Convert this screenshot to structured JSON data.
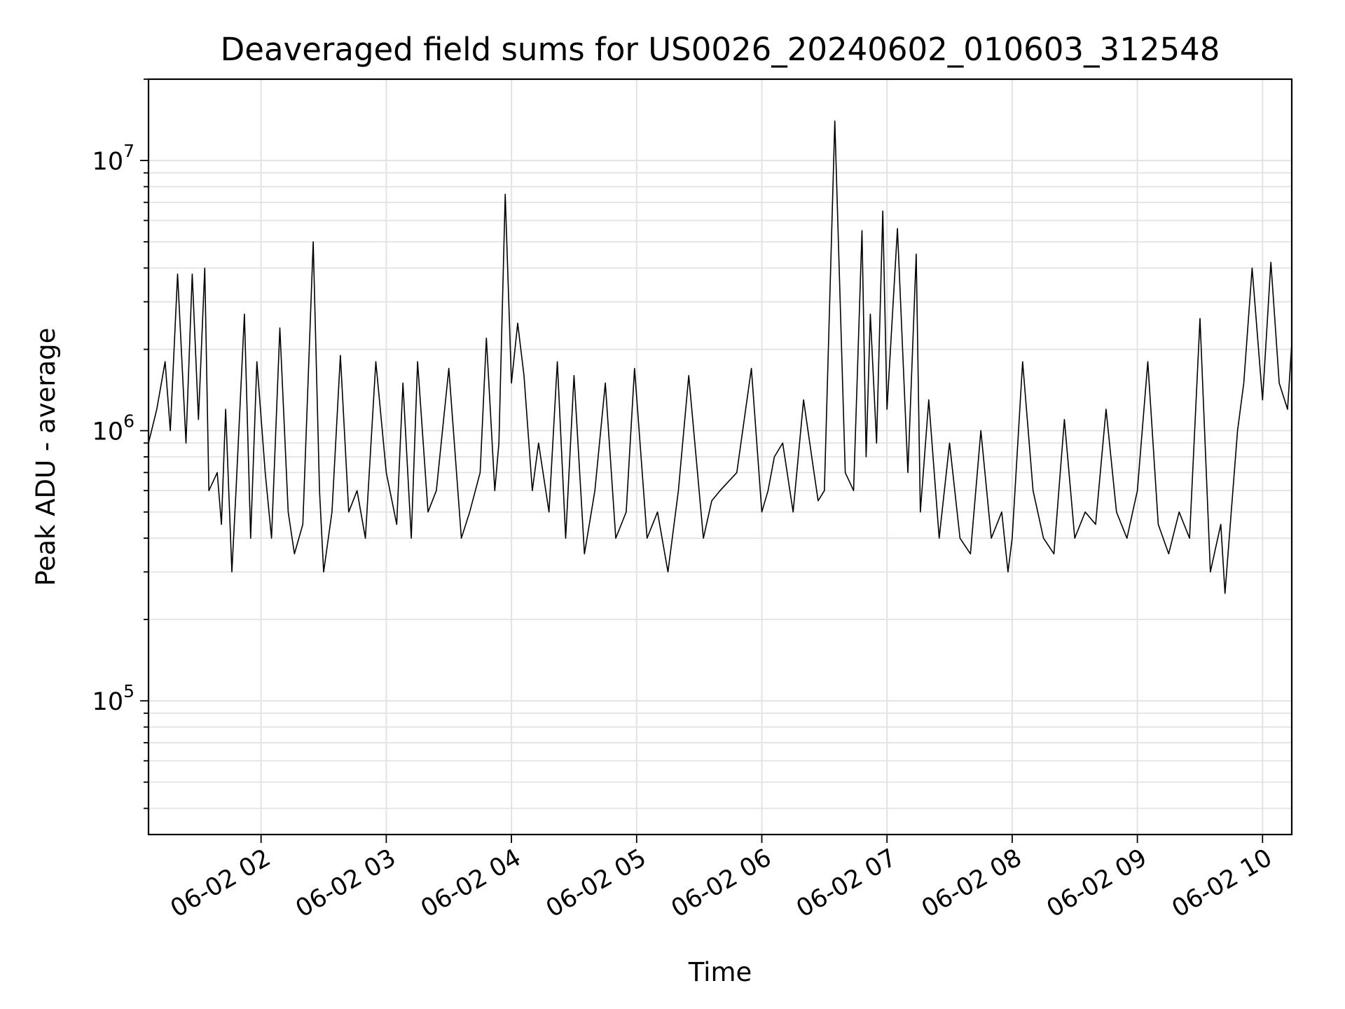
{
  "chart_data": {
    "type": "line",
    "title": "Deaveraged field sums for US0026_20240602_010603_312548",
    "xlabel": "Time",
    "ylabel": "Peak ADU - average",
    "yscale": "log",
    "ylim": [
      32000,
      20000000
    ],
    "xlim": [
      "2024-06-02T01:06:03",
      "2024-06-02T10:14:00"
    ],
    "grid": true,
    "line_color": "#000000",
    "x_ticks": [
      {
        "value": "2024-06-02T02:00:00",
        "label": "06-02 02"
      },
      {
        "value": "2024-06-02T03:00:00",
        "label": "06-02 03"
      },
      {
        "value": "2024-06-02T04:00:00",
        "label": "06-02 04"
      },
      {
        "value": "2024-06-02T05:00:00",
        "label": "06-02 05"
      },
      {
        "value": "2024-06-02T06:00:00",
        "label": "06-02 06"
      },
      {
        "value": "2024-06-02T07:00:00",
        "label": "06-02 07"
      },
      {
        "value": "2024-06-02T08:00:00",
        "label": "06-02 08"
      },
      {
        "value": "2024-06-02T09:00:00",
        "label": "06-02 09"
      },
      {
        "value": "2024-06-02T10:00:00",
        "label": "06-02 10"
      }
    ],
    "y_ticks": [
      {
        "value": 100000,
        "base": "10",
        "exp": "5"
      },
      {
        "value": 1000000,
        "base": "10",
        "exp": "6"
      },
      {
        "value": 10000000,
        "base": "10",
        "exp": "7"
      }
    ],
    "series": [
      {
        "x": [
          "2024-06-02T01:06:03",
          "2024-06-02T01:10:00",
          "2024-06-02T01:14:00",
          "2024-06-02T01:16:30",
          "2024-06-02T01:20:00",
          "2024-06-02T01:24:00",
          "2024-06-02T01:27:00",
          "2024-06-02T01:30:00",
          "2024-06-02T01:33:00",
          "2024-06-02T01:35:00",
          "2024-06-02T01:39:00",
          "2024-06-02T01:41:00",
          "2024-06-02T01:43:00",
          "2024-06-02T01:46:00",
          "2024-06-02T01:48:00",
          "2024-06-02T01:52:00",
          "2024-06-02T01:55:00",
          "2024-06-02T01:58:00",
          "2024-06-02T02:02:00",
          "2024-06-02T02:05:00",
          "2024-06-02T02:09:00",
          "2024-06-02T02:13:00",
          "2024-06-02T02:16:00",
          "2024-06-02T02:20:00",
          "2024-06-02T02:25:00",
          "2024-06-02T02:28:00",
          "2024-06-02T02:30:00",
          "2024-06-02T02:34:00",
          "2024-06-02T02:38:00",
          "2024-06-02T02:42:00",
          "2024-06-02T02:46:00",
          "2024-06-02T02:50:00",
          "2024-06-02T02:55:00",
          "2024-06-02T03:00:00",
          "2024-06-02T03:05:00",
          "2024-06-02T03:08:00",
          "2024-06-02T03:12:00",
          "2024-06-02T03:15:00",
          "2024-06-02T03:20:00",
          "2024-06-02T03:24:00",
          "2024-06-02T03:30:00",
          "2024-06-02T03:36:00",
          "2024-06-02T03:40:00",
          "2024-06-02T03:45:00",
          "2024-06-02T03:48:00",
          "2024-06-02T03:52:00",
          "2024-06-02T03:54:00",
          "2024-06-02T03:57:00",
          "2024-06-02T04:00:00",
          "2024-06-02T04:03:00",
          "2024-06-02T04:06:00",
          "2024-06-02T04:10:00",
          "2024-06-02T04:13:00",
          "2024-06-02T04:18:00",
          "2024-06-02T04:22:00",
          "2024-06-02T04:26:00",
          "2024-06-02T04:30:00",
          "2024-06-02T04:35:00",
          "2024-06-02T04:40:00",
          "2024-06-02T04:45:00",
          "2024-06-02T04:50:00",
          "2024-06-02T04:55:00",
          "2024-06-02T04:59:00",
          "2024-06-02T05:05:00",
          "2024-06-02T05:10:00",
          "2024-06-02T05:15:00",
          "2024-06-02T05:20:00",
          "2024-06-02T05:25:00",
          "2024-06-02T05:32:00",
          "2024-06-02T05:36:00",
          "2024-06-02T05:40:00",
          "2024-06-02T05:48:00",
          "2024-06-02T05:55:00",
          "2024-06-02T06:00:00",
          "2024-06-02T06:03:00",
          "2024-06-02T06:06:00",
          "2024-06-02T06:10:00",
          "2024-06-02T06:15:00",
          "2024-06-02T06:20:00",
          "2024-06-02T06:25:00",
          "2024-06-02T06:27:00",
          "2024-06-02T06:30:00",
          "2024-06-02T06:35:00",
          "2024-06-02T06:40:00",
          "2024-06-02T06:44:00",
          "2024-06-02T06:48:00",
          "2024-06-02T06:50:00",
          "2024-06-02T06:52:00",
          "2024-06-02T06:55:00",
          "2024-06-02T06:58:00",
          "2024-06-02T07:00:00",
          "2024-06-02T07:05:00",
          "2024-06-02T07:10:00",
          "2024-06-02T07:14:00",
          "2024-06-02T07:16:00",
          "2024-06-02T07:20:00",
          "2024-06-02T07:25:00",
          "2024-06-02T07:30:00",
          "2024-06-02T07:35:00",
          "2024-06-02T07:40:00",
          "2024-06-02T07:45:00",
          "2024-06-02T07:50:00",
          "2024-06-02T07:55:00",
          "2024-06-02T07:58:00",
          "2024-06-02T08:00:00",
          "2024-06-02T08:05:00",
          "2024-06-02T08:10:00",
          "2024-06-02T08:15:00",
          "2024-06-02T08:20:00",
          "2024-06-02T08:25:00",
          "2024-06-02T08:30:00",
          "2024-06-02T08:35:00",
          "2024-06-02T08:40:00",
          "2024-06-02T08:45:00",
          "2024-06-02T08:50:00",
          "2024-06-02T08:55:00",
          "2024-06-02T09:00:00",
          "2024-06-02T09:05:00",
          "2024-06-02T09:10:00",
          "2024-06-02T09:15:00",
          "2024-06-02T09:20:00",
          "2024-06-02T09:25:00",
          "2024-06-02T09:30:00",
          "2024-06-02T09:35:00",
          "2024-06-02T09:40:00",
          "2024-06-02T09:42:00",
          "2024-06-02T09:45:00",
          "2024-06-02T09:48:00",
          "2024-06-02T09:51:00",
          "2024-06-02T09:55:00",
          "2024-06-02T10:00:00",
          "2024-06-02T10:04:00",
          "2024-06-02T10:08:00",
          "2024-06-02T10:12:00",
          "2024-06-02T10:14:00"
        ],
        "y": [
          900000,
          1200000,
          1800000,
          1000000,
          3800000,
          900000,
          3800000,
          1100000,
          4000000,
          600000,
          700000,
          450000,
          1200000,
          300000,
          600000,
          2700000,
          400000,
          1800000,
          700000,
          400000,
          2400000,
          500000,
          350000,
          450000,
          5000000,
          600000,
          300000,
          500000,
          1900000,
          500000,
          600000,
          400000,
          1800000,
          700000,
          450000,
          1500000,
          400000,
          1800000,
          500000,
          600000,
          1700000,
          400000,
          500000,
          700000,
          2200000,
          600000,
          900000,
          7500000,
          1500000,
          2500000,
          1600000,
          600000,
          900000,
          500000,
          1800000,
          400000,
          1600000,
          350000,
          600000,
          1500000,
          400000,
          500000,
          1700000,
          400000,
          500000,
          300000,
          600000,
          1600000,
          400000,
          550000,
          600000,
          700000,
          1700000,
          500000,
          600000,
          800000,
          900000,
          500000,
          1300000,
          700000,
          550000,
          600000,
          14000000,
          700000,
          600000,
          5500000,
          800000,
          2700000,
          900000,
          6500000,
          1200000,
          5600000,
          700000,
          4500000,
          500000,
          1300000,
          400000,
          900000,
          400000,
          350000,
          1000000,
          400000,
          500000,
          300000,
          400000,
          1800000,
          600000,
          400000,
          350000,
          1100000,
          400000,
          500000,
          450000,
          1200000,
          500000,
          400000,
          600000,
          1800000,
          450000,
          350000,
          500000,
          400000,
          2600000,
          300000,
          450000,
          250000,
          500000,
          1000000,
          1500000,
          4000000,
          1300000,
          4200000,
          1500000,
          1200000,
          2100000
        ]
      }
    ]
  }
}
